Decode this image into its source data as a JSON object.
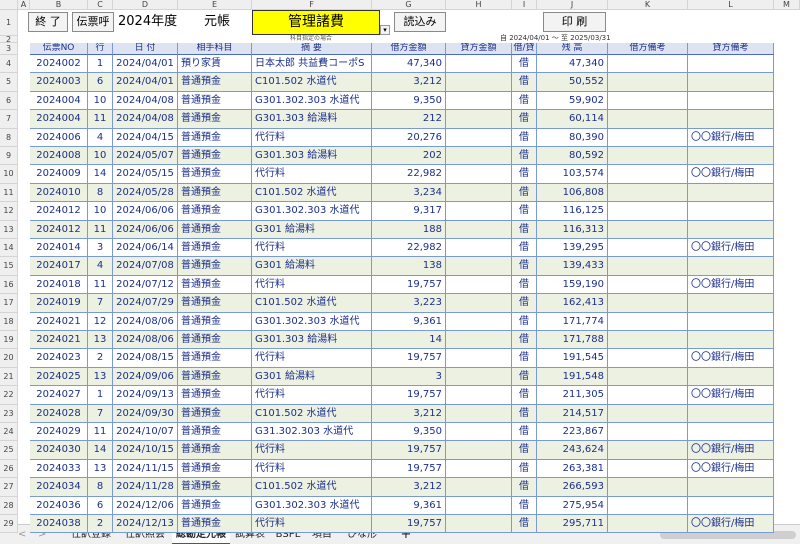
{
  "column_letters": [
    "A",
    "B",
    "C",
    "D",
    "E",
    "F",
    "G",
    "H",
    "I",
    "J",
    "K",
    "L",
    "M"
  ],
  "row_numbers": [
    1,
    2,
    3,
    4,
    5,
    6,
    7,
    8,
    9,
    10,
    11,
    12,
    13,
    14,
    15,
    16,
    17,
    18,
    19,
    20,
    21,
    22,
    23,
    24,
    25,
    26,
    27,
    28,
    29
  ],
  "toolbar": {
    "exit_button": "終 了",
    "voucher_button": "伝票呼",
    "fiscal_year": "2024年度",
    "ledger_label": "元帳",
    "account": "管理諸費",
    "account_hint": "科目指定の場合",
    "load_button": "読込み",
    "print_button": "印 刷",
    "period": "自 2024/04/01 ～ 至 2025/03/31"
  },
  "table": {
    "header": [
      "伝票NO",
      "行",
      "日 付",
      "相手科目",
      "摘 要",
      "借方金額",
      "貸方金額",
      "借/貸",
      "残 高",
      "借方備考",
      "貸方備考"
    ],
    "rows": [
      [
        "2024002",
        "1",
        "2024/04/01",
        "預り家賃",
        "日本太郎 共益費コーポS",
        "47,340",
        null,
        "借",
        "47,340",
        null,
        null
      ],
      [
        "2024003",
        "6",
        "2024/04/01",
        "普通預金",
        "C101.502 水道代",
        "3,212",
        null,
        "借",
        "50,552",
        null,
        null
      ],
      [
        "2024004",
        "10",
        "2024/04/08",
        "普通預金",
        "G301.302.303 水道代",
        "9,350",
        null,
        "借",
        "59,902",
        null,
        null
      ],
      [
        "2024004",
        "11",
        "2024/04/08",
        "普通預金",
        "G301.303 給湯料",
        "212",
        null,
        "借",
        "60,114",
        null,
        null
      ],
      [
        "2024006",
        "4",
        "2024/04/15",
        "普通預金",
        "代行料",
        "20,276",
        null,
        "借",
        "80,390",
        null,
        "〇〇銀行/梅田"
      ],
      [
        "2024008",
        "10",
        "2024/05/07",
        "普通預金",
        "G301.303 給湯料",
        "202",
        null,
        "借",
        "80,592",
        null,
        null
      ],
      [
        "2024009",
        "14",
        "2024/05/15",
        "普通預金",
        "代行料",
        "22,982",
        null,
        "借",
        "103,574",
        null,
        "〇〇銀行/梅田"
      ],
      [
        "2024010",
        "8",
        "2024/05/28",
        "普通預金",
        "C101.502 水道代",
        "3,234",
        null,
        "借",
        "106,808",
        null,
        null
      ],
      [
        "2024012",
        "10",
        "2024/06/06",
        "普通預金",
        "G301.302.303 水道代",
        "9,317",
        null,
        "借",
        "116,125",
        null,
        null
      ],
      [
        "2024012",
        "11",
        "2024/06/06",
        "普通預金",
        "G301 給湯料",
        "188",
        null,
        "借",
        "116,313",
        null,
        null
      ],
      [
        "2024014",
        "3",
        "2024/06/14",
        "普通預金",
        "代行料",
        "22,982",
        null,
        "借",
        "139,295",
        null,
        "〇〇銀行/梅田"
      ],
      [
        "2024017",
        "4",
        "2024/07/08",
        "普通預金",
        "G301 給湯料",
        "138",
        null,
        "借",
        "139,433",
        null,
        null
      ],
      [
        "2024018",
        "11",
        "2024/07/12",
        "普通預金",
        "代行料",
        "19,757",
        null,
        "借",
        "159,190",
        null,
        "〇〇銀行/梅田"
      ],
      [
        "2024019",
        "7",
        "2024/07/29",
        "普通預金",
        "C101.502 水道代",
        "3,223",
        null,
        "借",
        "162,413",
        null,
        null
      ],
      [
        "2024021",
        "12",
        "2024/08/06",
        "普通預金",
        "G301.302.303 水道代",
        "9,361",
        null,
        "借",
        "171,774",
        null,
        null
      ],
      [
        "2024021",
        "13",
        "2024/08/06",
        "普通預金",
        "G301.303 給湯料",
        "14",
        null,
        "借",
        "171,788",
        null,
        null
      ],
      [
        "2024023",
        "2",
        "2024/08/15",
        "普通預金",
        "代行料",
        "19,757",
        null,
        "借",
        "191,545",
        null,
        "〇〇銀行/梅田"
      ],
      [
        "2024025",
        "13",
        "2024/09/06",
        "普通預金",
        "G301 給湯料",
        "3",
        null,
        "借",
        "191,548",
        null,
        null
      ],
      [
        "2024027",
        "1",
        "2024/09/13",
        "普通預金",
        "代行料",
        "19,757",
        null,
        "借",
        "211,305",
        null,
        "〇〇銀行/梅田"
      ],
      [
        "2024028",
        "7",
        "2024/09/30",
        "普通預金",
        "C101.502 水道代",
        "3,212",
        null,
        "借",
        "214,517",
        null,
        null
      ],
      [
        "2024029",
        "11",
        "2024/10/07",
        "普通預金",
        "G31.302.303 水道代",
        "9,350",
        null,
        "借",
        "223,867",
        null,
        null
      ],
      [
        "2024030",
        "14",
        "2024/10/15",
        "普通預金",
        "代行料",
        "19,757",
        null,
        "借",
        "243,624",
        null,
        "〇〇銀行/梅田"
      ],
      [
        "2024033",
        "13",
        "2024/11/15",
        "普通預金",
        "代行料",
        "19,757",
        null,
        "借",
        "263,381",
        null,
        "〇〇銀行/梅田"
      ],
      [
        "2024034",
        "8",
        "2024/11/28",
        "普通預金",
        "C101.502 水道代",
        "3,212",
        null,
        "借",
        "266,593",
        null,
        null
      ],
      [
        "2024036",
        "6",
        "2024/12/06",
        "普通預金",
        "G301.302.303 水道代",
        "9,361",
        null,
        "借",
        "275,954",
        null,
        null
      ],
      [
        "2024038",
        "2",
        "2024/12/13",
        "普通預金",
        "代行料",
        "19,757",
        null,
        "借",
        "295,711",
        null,
        "〇〇銀行/梅田"
      ]
    ]
  },
  "sheet_tabs": [
    "仕訳登録",
    "仕訳照会",
    "総勘定元帳",
    "試算表",
    "BSPL",
    "項目",
    "ひな形"
  ],
  "active_tab": 2,
  "add_tab": "+"
}
